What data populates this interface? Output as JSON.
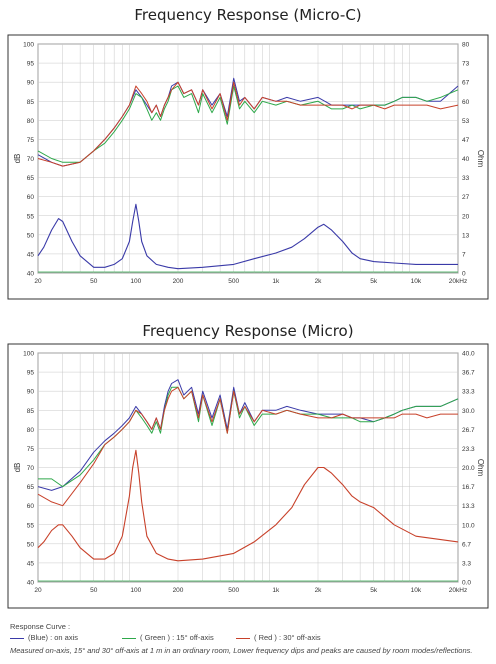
{
  "colors": {
    "blue": "#3a3aa8",
    "green": "#2ea84a",
    "red": "#c8412a"
  },
  "chart_data": [
    {
      "type": "line",
      "title": "Frequency Response  (Micro-C)",
      "xlabel": "",
      "ylabel": "dB",
      "ylabel_right": "Ohm",
      "x_scale": "log",
      "xlim": [
        20,
        20000
      ],
      "ylim": [
        40,
        100
      ],
      "x_ticks": [
        "20",
        "50",
        "100",
        "200",
        "500",
        "1k",
        "2k",
        "5k",
        "10k",
        "20kHz"
      ],
      "y_ticks": [
        "40",
        "45",
        "50",
        "55",
        "60",
        "65",
        "70",
        "75",
        "80",
        "85",
        "90",
        "95",
        "100"
      ],
      "y2_ticks": [
        "0",
        "7",
        "13",
        "20",
        "27",
        "33",
        "40",
        "47",
        "53",
        "60",
        "67",
        "73",
        "80"
      ],
      "series": [
        {
          "color": "#3a3aa8",
          "x": [
            20,
            25,
            30,
            40,
            50,
            60,
            70,
            80,
            90,
            100,
            110,
            120,
            130,
            140,
            150,
            160,
            170,
            180,
            200,
            220,
            250,
            280,
            300,
            350,
            400,
            450,
            500,
            550,
            600,
            700,
            800,
            1000,
            1200,
            1500,
            2000,
            2500,
            3000,
            3500,
            4000,
            5000,
            6000,
            7000,
            8000,
            10000,
            12000,
            15000,
            20000
          ],
          "y": [
            71,
            69,
            68,
            69,
            72,
            75,
            78,
            81,
            84,
            88,
            86,
            84,
            82,
            84,
            81,
            84,
            86,
            89,
            90,
            87,
            88,
            84,
            88,
            84,
            87,
            81,
            91,
            85,
            86,
            83,
            86,
            85,
            86,
            85,
            86,
            84,
            84,
            84,
            84,
            84,
            84,
            85,
            86,
            86,
            85,
            85,
            89
          ]
        },
        {
          "color": "#2ea84a",
          "x": [
            20,
            25,
            30,
            40,
            50,
            60,
            70,
            80,
            90,
            100,
            110,
            120,
            130,
            140,
            150,
            160,
            170,
            180,
            200,
            220,
            250,
            280,
            300,
            350,
            400,
            450,
            500,
            550,
            600,
            700,
            800,
            1000,
            1200,
            1500,
            2000,
            2500,
            3000,
            3500,
            4000,
            5000,
            6000,
            7000,
            8000,
            10000,
            12000,
            15000,
            20000
          ],
          "y": [
            72,
            70,
            69,
            69,
            72,
            74,
            77,
            80,
            83,
            87,
            86,
            83,
            80,
            82,
            80,
            83,
            85,
            88,
            89,
            86,
            87,
            82,
            87,
            82,
            86,
            79,
            89,
            83,
            85,
            82,
            85,
            84,
            85,
            84,
            85,
            83,
            83,
            84,
            83,
            84,
            84,
            85,
            86,
            86,
            85,
            86,
            88
          ]
        },
        {
          "color": "#c8412a",
          "x": [
            20,
            25,
            30,
            40,
            50,
            60,
            70,
            80,
            90,
            100,
            110,
            120,
            130,
            140,
            150,
            160,
            170,
            180,
            200,
            220,
            250,
            280,
            300,
            350,
            400,
            450,
            500,
            550,
            600,
            700,
            800,
            1000,
            1200,
            1500,
            2000,
            2500,
            3000,
            3500,
            4000,
            5000,
            6000,
            7000,
            8000,
            10000,
            12000,
            15000,
            20000
          ],
          "y": [
            70,
            69,
            68,
            69,
            72,
            75,
            78,
            81,
            84,
            89,
            87,
            85,
            82,
            84,
            81,
            84,
            86,
            88,
            90,
            87,
            88,
            84,
            88,
            83,
            87,
            80,
            90,
            84,
            86,
            83,
            86,
            85,
            85,
            84,
            84,
            84,
            84,
            83,
            84,
            84,
            83,
            84,
            84,
            84,
            84,
            83,
            84
          ]
        },
        {
          "color": "#3a3aa8",
          "axis": "right",
          "x": [
            20,
            22,
            25,
            28,
            30,
            35,
            40,
            50,
            60,
            70,
            80,
            90,
            95,
            100,
            105,
            110,
            120,
            140,
            170,
            200,
            300,
            500,
            700,
            1000,
            1300,
            1600,
            2000,
            2200,
            2500,
            3000,
            3500,
            4000,
            5000,
            7000,
            10000,
            20000
          ],
          "y": [
            6,
            9,
            15,
            19,
            18,
            11,
            6,
            2,
            2,
            3,
            5,
            11,
            18,
            24,
            18,
            11,
            6,
            3,
            2,
            1.5,
            2,
            3,
            5,
            7,
            9,
            12,
            16,
            17,
            15,
            11,
            7,
            5,
            4,
            3.5,
            3,
            3
          ]
        }
      ]
    },
    {
      "type": "line",
      "title": "Frequency Response  (Micro)",
      "xlabel": "",
      "ylabel": "dB",
      "ylabel_right": "Ohm",
      "x_scale": "log",
      "xlim": [
        20,
        20000
      ],
      "ylim": [
        40,
        100
      ],
      "x_ticks": [
        "20",
        "50",
        "100",
        "200",
        "500",
        "1k",
        "2k",
        "5k",
        "10k",
        "20kHz"
      ],
      "y_ticks": [
        "40",
        "45",
        "50",
        "55",
        "60",
        "65",
        "70",
        "75",
        "80",
        "85",
        "90",
        "95",
        "100"
      ],
      "y2_ticks": [
        "0.0",
        "3.3",
        "6.7",
        "10.0",
        "13.3",
        "16.7",
        "20.0",
        "23.3",
        "26.7",
        "30.0",
        "33.3",
        "36.7",
        "40.0"
      ],
      "series": [
        {
          "color": "#3a3aa8",
          "x": [
            20,
            25,
            30,
            40,
            50,
            60,
            70,
            80,
            90,
            100,
            110,
            120,
            130,
            140,
            150,
            160,
            170,
            180,
            200,
            220,
            250,
            280,
            300,
            350,
            400,
            450,
            500,
            550,
            600,
            700,
            800,
            1000,
            1200,
            1500,
            2000,
            2500,
            3000,
            3500,
            4000,
            5000,
            6000,
            7000,
            8000,
            10000,
            12000,
            15000,
            20000
          ],
          "y": [
            65,
            64,
            65,
            69,
            74,
            77,
            79,
            81,
            83,
            86,
            84,
            82,
            80,
            83,
            80,
            86,
            90,
            92,
            93,
            89,
            91,
            84,
            90,
            83,
            89,
            80,
            91,
            84,
            87,
            82,
            85,
            85,
            86,
            85,
            84,
            84,
            84,
            83,
            83,
            82,
            83,
            84,
            85,
            86,
            86,
            86,
            88
          ]
        },
        {
          "color": "#2ea84a",
          "x": [
            20,
            25,
            30,
            40,
            50,
            60,
            70,
            80,
            90,
            100,
            110,
            120,
            130,
            140,
            150,
            160,
            170,
            180,
            200,
            220,
            250,
            280,
            300,
            350,
            400,
            450,
            500,
            550,
            600,
            700,
            800,
            1000,
            1200,
            1500,
            2000,
            2500,
            3000,
            3500,
            4000,
            5000,
            6000,
            7000,
            8000,
            10000,
            12000,
            15000,
            20000
          ],
          "y": [
            67,
            67,
            65,
            68,
            72,
            76,
            78,
            80,
            82,
            85,
            83,
            81,
            79,
            82,
            79,
            85,
            89,
            91,
            91,
            88,
            90,
            82,
            89,
            81,
            88,
            79,
            90,
            83,
            86,
            81,
            84,
            84,
            85,
            84,
            84,
            83,
            83,
            83,
            82,
            82,
            83,
            84,
            85,
            86,
            86,
            86,
            88
          ]
        },
        {
          "color": "#c8412a",
          "x": [
            20,
            25,
            30,
            40,
            50,
            60,
            70,
            80,
            90,
            100,
            110,
            120,
            130,
            140,
            150,
            160,
            170,
            180,
            200,
            220,
            250,
            280,
            300,
            350,
            400,
            450,
            500,
            550,
            600,
            700,
            800,
            1000,
            1200,
            1500,
            2000,
            2500,
            3000,
            3500,
            4000,
            5000,
            6000,
            7000,
            8000,
            10000,
            12000,
            15000,
            20000
          ],
          "y": [
            63,
            61,
            60,
            66,
            71,
            76,
            78,
            80,
            82,
            85,
            84,
            82,
            80,
            83,
            80,
            85,
            88,
            90,
            91,
            88,
            90,
            83,
            89,
            82,
            88,
            79,
            90,
            84,
            86,
            82,
            85,
            84,
            85,
            84,
            83,
            83,
            84,
            83,
            83,
            83,
            83,
            83,
            84,
            84,
            83,
            84,
            84
          ]
        },
        {
          "color": "#c8412a",
          "axis": "right",
          "x": [
            20,
            22,
            25,
            28,
            30,
            35,
            40,
            50,
            60,
            70,
            80,
            90,
            95,
            100,
            105,
            110,
            120,
            140,
            170,
            200,
            300,
            500,
            700,
            1000,
            1300,
            1600,
            2000,
            2200,
            2500,
            3000,
            3500,
            4000,
            5000,
            7000,
            10000,
            20000
          ],
          "y": [
            6,
            7,
            9,
            10,
            10,
            8,
            6,
            4,
            4,
            5,
            8,
            15,
            20,
            23,
            19,
            14,
            8,
            5,
            4,
            3.7,
            4,
            5,
            7,
            10,
            13,
            17,
            20,
            20,
            19,
            17,
            15,
            14,
            13,
            10,
            8,
            7
          ]
        }
      ]
    }
  ],
  "legend": {
    "header": "Response Curve :",
    "blue_label": "(Blue) : on axis",
    "green_label": "( Green ) : 15° off-axis",
    "red_label": "( Red ) : 30° off-axis",
    "note": "Measured on-axis, 15° and 30° off-axis at 1 m in an ordinary room, Lower frequency dips and peaks are caused by room modes/reflections."
  }
}
